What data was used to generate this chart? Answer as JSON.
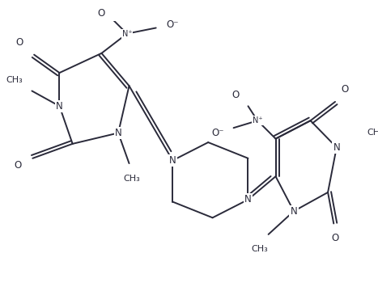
{
  "bg_color": "#ffffff",
  "line_color": "#2a2a3a",
  "line_width": 1.4,
  "font_size": 8.5,
  "fig_width": 4.67,
  "fig_height": 3.55,
  "dpi": 100,
  "xlim": [
    0,
    467
  ],
  "ylim": [
    0,
    355
  ]
}
